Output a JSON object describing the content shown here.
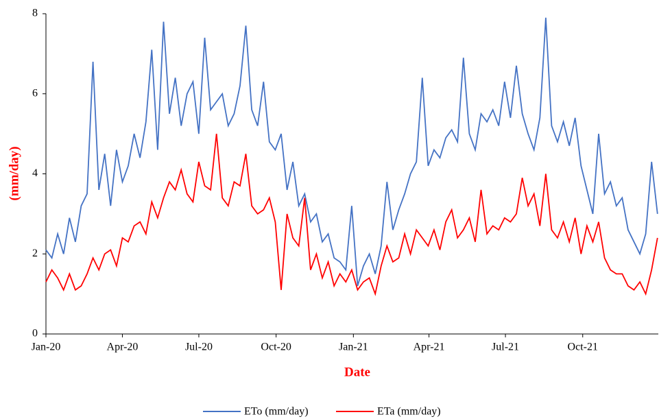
{
  "chart_data": {
    "type": "line",
    "x_label": "Date",
    "y_label": "(mm/day)",
    "x": [
      0,
      7,
      14,
      21,
      28,
      35,
      42,
      49,
      56,
      63,
      70,
      77,
      84,
      91,
      98,
      105,
      112,
      119,
      126,
      133,
      140,
      147,
      154,
      161,
      168,
      175,
      182,
      189,
      196,
      203,
      210,
      217,
      224,
      231,
      238,
      245,
      252,
      259,
      266,
      273,
      280,
      287,
      294,
      301,
      308,
      315,
      322,
      329,
      336,
      343,
      350,
      357,
      364,
      371,
      378,
      385,
      392,
      399,
      406,
      413,
      420,
      427,
      434,
      441,
      448,
      455,
      462,
      469,
      476,
      483,
      490,
      497,
      504,
      511,
      518,
      525,
      532,
      539,
      546,
      553,
      560,
      567,
      574,
      581,
      588,
      595,
      602,
      609,
      616,
      623,
      630,
      637,
      644,
      651,
      658,
      665,
      672,
      679,
      686,
      693,
      700,
      707,
      714,
      721,
      728
    ],
    "series": [
      {
        "name": "ETo (mm/day)",
        "color": "#4472c4",
        "values": [
          2.1,
          1.9,
          2.5,
          2.0,
          2.9,
          2.3,
          3.2,
          3.5,
          6.8,
          3.6,
          4.5,
          3.2,
          4.6,
          3.8,
          4.2,
          5.0,
          4.4,
          5.3,
          7.1,
          4.6,
          7.8,
          5.5,
          6.4,
          5.2,
          6.0,
          6.3,
          5.0,
          7.4,
          5.6,
          5.8,
          6.0,
          5.2,
          5.5,
          6.2,
          7.7,
          5.6,
          5.2,
          6.3,
          4.8,
          4.6,
          5.0,
          3.6,
          4.3,
          3.2,
          3.5,
          2.8,
          3.0,
          2.3,
          2.5,
          1.9,
          1.8,
          1.6,
          3.2,
          1.2,
          1.7,
          2.0,
          1.5,
          2.2,
          3.8,
          2.6,
          3.1,
          3.5,
          4.0,
          4.3,
          6.4,
          4.2,
          4.6,
          4.4,
          4.9,
          5.1,
          4.8,
          6.9,
          5.0,
          4.6,
          5.5,
          5.3,
          5.6,
          5.2,
          6.3,
          5.4,
          6.7,
          5.5,
          5.0,
          4.6,
          5.4,
          7.9,
          5.2,
          4.8,
          5.3,
          4.7,
          5.4,
          4.2,
          3.6,
          3.0,
          5.0,
          3.5,
          3.8,
          3.2,
          3.4,
          2.6,
          2.3,
          2.0,
          2.5,
          4.3,
          3.0
        ]
      },
      {
        "name": "ETa (mm/day)",
        "color": "#ff0000",
        "values": [
          1.3,
          1.6,
          1.4,
          1.1,
          1.5,
          1.1,
          1.2,
          1.5,
          1.9,
          1.6,
          2.0,
          2.1,
          1.7,
          2.4,
          2.3,
          2.7,
          2.8,
          2.5,
          3.3,
          2.9,
          3.4,
          3.8,
          3.6,
          4.1,
          3.5,
          3.3,
          4.3,
          3.7,
          3.6,
          5.0,
          3.4,
          3.2,
          3.8,
          3.7,
          4.5,
          3.2,
          3.0,
          3.1,
          3.4,
          2.8,
          1.1,
          3.0,
          2.4,
          2.2,
          3.4,
          1.6,
          2.0,
          1.4,
          1.8,
          1.2,
          1.5,
          1.3,
          1.6,
          1.1,
          1.3,
          1.4,
          1.0,
          1.7,
          2.2,
          1.8,
          1.9,
          2.5,
          2.0,
          2.6,
          2.4,
          2.2,
          2.6,
          2.1,
          2.8,
          3.1,
          2.4,
          2.6,
          2.9,
          2.3,
          3.6,
          2.5,
          2.7,
          2.6,
          2.9,
          2.8,
          3.0,
          3.9,
          3.2,
          3.5,
          2.7,
          4.0,
          2.6,
          2.4,
          2.8,
          2.3,
          2.9,
          2.0,
          2.7,
          2.3,
          2.8,
          1.9,
          1.6,
          1.5,
          1.5,
          1.2,
          1.1,
          1.3,
          1.0,
          1.6,
          2.4
        ]
      }
    ],
    "xlim": [
      0,
      729
    ],
    "xticks": [
      {
        "value": 0,
        "label": "Jan-20"
      },
      {
        "value": 91,
        "label": "Apr-20"
      },
      {
        "value": 182,
        "label": "Jul-20"
      },
      {
        "value": 274,
        "label": "Oct-20"
      },
      {
        "value": 366,
        "label": "Jan-21"
      },
      {
        "value": 456,
        "label": "Apr-21"
      },
      {
        "value": 547,
        "label": "Jul-21"
      },
      {
        "value": 639,
        "label": "Oct-21"
      }
    ],
    "ylim": [
      0,
      8
    ],
    "yticks": [
      0,
      2,
      4,
      6,
      8
    ],
    "grid": false,
    "legend": "bottom"
  }
}
